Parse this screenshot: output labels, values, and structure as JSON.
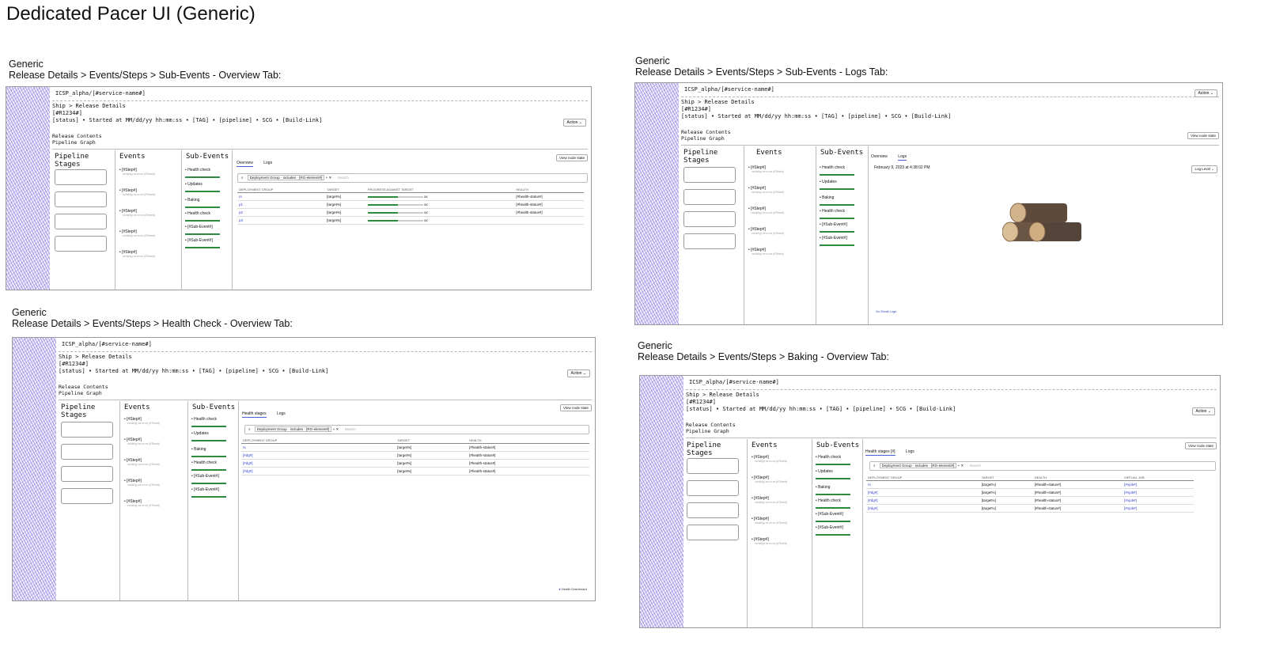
{
  "page_title": "Dedicated Pacer UI (Generic)",
  "panels": {
    "p1": {
      "caption_l1": "Generic",
      "caption_l2": "Release Details > Events/Steps > Sub-Events - Overview Tab:"
    },
    "p2": {
      "caption_l1": "Generic",
      "caption_l2": "Release Details > Events/Steps > Sub-Events - Logs Tab:"
    },
    "p3": {
      "caption_l1": "Generic",
      "caption_l2": "Release Details > Events/Steps > Health Check - Overview Tab:"
    },
    "p4": {
      "caption_l1": "Generic",
      "caption_l2": "Release Details > Events/Steps > Baking - Overview Tab:"
    }
  },
  "wire": {
    "service": "ICSP_alpha/[#service-name#]",
    "breadcrumb": "Ship > Release Details",
    "release_id": "[#R1234#]",
    "status_line": "[status] • Started at MM/dd/yy hh:mm:ss • [TAG] • [pipeline] • SCG • [Build-Link]",
    "action": "Action",
    "release_contents": "Release Contents",
    "pipeline_graph": "Pipeline Graph",
    "col_stages": "Pipeline Stages",
    "col_events": "Events",
    "col_subevents": "Sub-Events",
    "event": "[#Step#]",
    "event_sub": "xx/dd/yy xx:xx:xx (#Time#)",
    "subevents": [
      "Health check",
      "Updates",
      "Baking",
      "Health check",
      "[#Sub-Event#]",
      "[#Sub-Event#]"
    ],
    "view_node_state": "View node state",
    "tab_overview": "Overview",
    "tab_logs": "Logs",
    "tab_health": "Health stages",
    "tab_health_count": "Health stages [#]",
    "filter_chip": "Deployment Group",
    "filter_op": "includes",
    "filter_val": "[RG-element#]",
    "search": "Search",
    "col_dg": "DEPLOYMENT GROUP",
    "col_target": "TARGET",
    "col_progress": "PROGRESS AGAINST TARGET",
    "col_health": "HEALTH",
    "col_vjob": "VIRTUAL JOB",
    "p1_rows": [
      {
        "dg": "rs",
        "target": "[target%]",
        "pct": "xx",
        "health": "[#health-status#]",
        "fill": 0.55
      },
      {
        "dg": "p1",
        "target": "[target%]",
        "pct": "xx",
        "health": "[#health-status#]",
        "fill": 0.55
      },
      {
        "dg": "p2",
        "target": "[target%]",
        "pct": "xx",
        "health": "[#health-status#]",
        "fill": 0.55
      },
      {
        "dg": "p3",
        "target": "[target%]",
        "pct": "xx",
        "health": "",
        "fill": 0.55
      }
    ],
    "p3_rows": [
      {
        "dg": "rs",
        "target": "[target%]",
        "health": "[#health-status#]"
      },
      {
        "dg": "[#dg#]",
        "target": "[target%]",
        "health": "[#health-status#]"
      },
      {
        "dg": "[#dg#]",
        "target": "[target%]",
        "health": "[#health-status#]"
      },
      {
        "dg": "[#dg#]",
        "target": "[target%]",
        "health": "[#health-status#]"
      }
    ],
    "p4_rows": [
      {
        "dg": "rs",
        "target": "[target%]",
        "health": "[#health-status#]",
        "vjob": "[#vjob#]"
      },
      {
        "dg": "[#dg#]",
        "target": "[target%]",
        "health": "[#health-status#]",
        "vjob": "[#vjob#]"
      },
      {
        "dg": "[#dg#]",
        "target": "[target%]",
        "health": "[#health-status#]",
        "vjob": "[#vjob#]"
      },
      {
        "dg": "[#dg#]",
        "target": "[target%]",
        "health": "[#health-status#]",
        "vjob": "[#vjob#]"
      }
    ],
    "log_timestamp": "February 9, 2023 at 4:38:02 PM",
    "log_level": "Log Level",
    "log_footer": "Go Email Logs",
    "hc_footer": "Health Dashboard"
  }
}
